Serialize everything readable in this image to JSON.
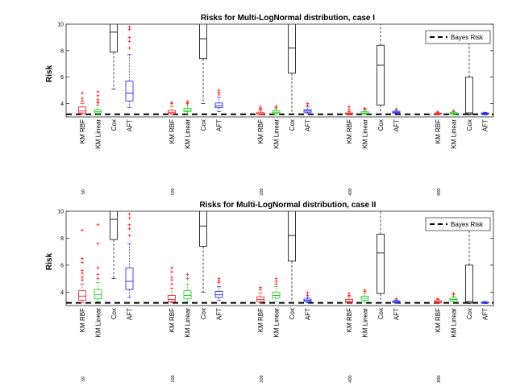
{
  "chart_data": [
    {
      "type": "box",
      "title": "Risks for Multi-LogNormal distribution, case I",
      "ylabel": "Risk",
      "ylim": [
        3,
        10
      ],
      "yticks": [
        4,
        6,
        8,
        10
      ],
      "legend": {
        "label": "Bayes Risk",
        "placement": "top-right"
      },
      "bayes_risk": 3.2,
      "methods": [
        "KM RBF",
        "KM Linear",
        "Cox",
        "AFT"
      ],
      "groups": [
        "50",
        "100",
        "200",
        "400",
        "800"
      ],
      "colors": {
        "KM RBF": "#ee3333",
        "KM Linear": "#33cc33",
        "Cox": "#222222",
        "AFT": "#3333ee",
        "outlier": "#ff2222",
        "bayes": "#000000"
      },
      "boxes": [
        [
          {
            "q1": 3.3,
            "med": 3.45,
            "q3": 3.75,
            "wlo": 3.2,
            "whi": 4.0,
            "outliers": [
              4.2,
              4.4,
              4.8
            ]
          },
          {
            "q1": 3.3,
            "med": 3.4,
            "q3": 3.55,
            "wlo": 3.2,
            "whi": 3.9,
            "outliers": [
              4.05,
              4.15,
              4.3,
              4.6,
              4.9
            ]
          },
          {
            "q1": 7.9,
            "med": 9.4,
            "q3": 10.3,
            "wlo": 5.1,
            "whi": 10.5,
            "outliers": []
          },
          {
            "q1": 4.2,
            "med": 4.8,
            "q3": 5.7,
            "wlo": 3.7,
            "whi": 7.7,
            "outliers": [
              8.2,
              8.7,
              9.0,
              9.6,
              9.8
            ]
          }
        ],
        [
          {
            "q1": 3.25,
            "med": 3.35,
            "q3": 3.5,
            "wlo": 3.2,
            "whi": 3.8,
            "outliers": [
              4.0,
              4.1
            ]
          },
          {
            "q1": 3.4,
            "med": 3.5,
            "q3": 3.65,
            "wlo": 3.25,
            "whi": 3.85,
            "outliers": [
              4.0,
              4.05,
              4.15
            ]
          },
          {
            "q1": 7.4,
            "med": 8.9,
            "q3": 10.3,
            "wlo": 4.0,
            "whi": 10.5,
            "outliers": []
          },
          {
            "q1": 3.7,
            "med": 3.85,
            "q3": 4.05,
            "wlo": 3.4,
            "whi": 4.5,
            "outliers": [
              4.7,
              4.85,
              5.0
            ]
          }
        ],
        [
          {
            "q1": 3.2,
            "med": 3.25,
            "q3": 3.35,
            "wlo": 3.15,
            "whi": 3.5,
            "outliers": [
              3.6,
              3.65,
              3.75
            ]
          },
          {
            "q1": 3.25,
            "med": 3.35,
            "q3": 3.45,
            "wlo": 3.2,
            "whi": 3.6,
            "outliers": [
              3.7,
              3.8
            ]
          },
          {
            "q1": 6.3,
            "med": 8.2,
            "q3": 10.2,
            "wlo": 3.2,
            "whi": 10.4,
            "outliers": []
          },
          {
            "q1": 3.35,
            "med": 3.45,
            "q3": 3.55,
            "wlo": 3.25,
            "whi": 3.75,
            "outliers": [
              3.9,
              4.0
            ]
          }
        ],
        [
          {
            "q1": 3.2,
            "med": 3.25,
            "q3": 3.3,
            "wlo": 3.15,
            "whi": 3.4,
            "outliers": [
              3.55,
              3.75
            ]
          },
          {
            "q1": 3.25,
            "med": 3.3,
            "q3": 3.4,
            "wlo": 3.2,
            "whi": 3.5,
            "outliers": [
              3.6,
              3.65
            ]
          },
          {
            "q1": 3.9,
            "med": 6.9,
            "q3": 8.4,
            "wlo": 3.2,
            "whi": 10.4,
            "outliers": []
          },
          {
            "q1": 3.3,
            "med": 3.35,
            "q3": 3.42,
            "wlo": 3.25,
            "whi": 3.5,
            "outliers": [
              3.6
            ]
          }
        ],
        [
          {
            "q1": 3.2,
            "med": 3.23,
            "q3": 3.28,
            "wlo": 3.15,
            "whi": 3.33,
            "outliers": [
              3.38
            ]
          },
          {
            "q1": 3.22,
            "med": 3.27,
            "q3": 3.32,
            "wlo": 3.18,
            "whi": 3.4,
            "outliers": [
              3.45
            ]
          },
          {
            "q1": 3.2,
            "med": 3.3,
            "q3": 6.0,
            "wlo": 3.15,
            "whi": 9.4,
            "outliers": []
          },
          {
            "q1": 3.2,
            "med": 3.25,
            "q3": 3.3,
            "wlo": 3.18,
            "whi": 3.35,
            "outliers": []
          }
        ]
      ]
    },
    {
      "type": "box",
      "title": "Risks for Multi-LogNormal distribution, case II",
      "ylabel": "Risk",
      "ylim": [
        3,
        10
      ],
      "yticks": [
        4,
        6,
        8,
        10
      ],
      "legend": {
        "label": "Bayes Risk",
        "placement": "top-right"
      },
      "bayes_risk": 3.2,
      "methods": [
        "KM RBF",
        "KM Linear",
        "Cox",
        "AFT"
      ],
      "groups": [
        "50",
        "100",
        "200",
        "400",
        "800"
      ],
      "colors": {
        "KM RBF": "#ee3333",
        "KM Linear": "#33cc33",
        "Cox": "#222222",
        "AFT": "#3333ee",
        "outlier": "#ff2222",
        "bayes": "#000000"
      },
      "boxes": [
        [
          {
            "q1": 3.4,
            "med": 3.7,
            "q3": 4.1,
            "wlo": 3.2,
            "whi": 4.6,
            "outliers": [
              4.9,
              5.1,
              5.4,
              5.6,
              6.2,
              6.5,
              8.6
            ]
          },
          {
            "q1": 3.5,
            "med": 3.8,
            "q3": 4.2,
            "wlo": 3.3,
            "whi": 4.7,
            "outliers": [
              5.0,
              5.3,
              5.8,
              7.6,
              9.0
            ]
          },
          {
            "q1": 7.9,
            "med": 9.4,
            "q3": 10.3,
            "wlo": 5.0,
            "whi": 10.5,
            "outliers": []
          },
          {
            "q1": 4.2,
            "med": 4.8,
            "q3": 5.8,
            "wlo": 3.6,
            "whi": 7.6,
            "outliers": [
              8.2,
              8.7,
              9.0,
              9.5,
              9.8
            ]
          }
        ],
        [
          {
            "q1": 3.3,
            "med": 3.45,
            "q3": 3.75,
            "wlo": 3.2,
            "whi": 4.3,
            "outliers": [
              4.6,
              4.9,
              5.1,
              5.5,
              5.8
            ]
          },
          {
            "q1": 3.5,
            "med": 3.75,
            "q3": 4.1,
            "wlo": 3.3,
            "whi": 4.6,
            "outliers": [
              5.0,
              5.3
            ]
          },
          {
            "q1": 7.4,
            "med": 8.9,
            "q3": 10.3,
            "wlo": 4.0,
            "whi": 10.5,
            "outliers": []
          },
          {
            "q1": 3.6,
            "med": 3.8,
            "q3": 4.05,
            "wlo": 3.4,
            "whi": 4.4,
            "outliers": [
              4.7,
              4.85,
              5.0
            ]
          }
        ],
        [
          {
            "q1": 3.3,
            "med": 3.45,
            "q3": 3.65,
            "wlo": 3.2,
            "whi": 3.95,
            "outliers": [
              4.2,
              4.35
            ]
          },
          {
            "q1": 3.55,
            "med": 3.75,
            "q3": 4.0,
            "wlo": 3.3,
            "whi": 4.4,
            "outliers": [
              4.6,
              4.8,
              5.0
            ]
          },
          {
            "q1": 6.3,
            "med": 8.2,
            "q3": 10.2,
            "wlo": 3.2,
            "whi": 10.4,
            "outliers": []
          },
          {
            "q1": 3.3,
            "med": 3.38,
            "q3": 3.48,
            "wlo": 3.2,
            "whi": 3.6,
            "outliers": [
              3.75,
              3.95
            ]
          }
        ],
        [
          {
            "q1": 3.22,
            "med": 3.3,
            "q3": 3.45,
            "wlo": 3.15,
            "whi": 3.65,
            "outliers": [
              3.75,
              3.9
            ]
          },
          {
            "q1": 3.4,
            "med": 3.55,
            "q3": 3.7,
            "wlo": 3.25,
            "whi": 3.9,
            "outliers": [
              4.05,
              4.15
            ]
          },
          {
            "q1": 3.9,
            "med": 6.9,
            "q3": 8.3,
            "wlo": 3.2,
            "whi": 10.4,
            "outliers": []
          },
          {
            "q1": 3.22,
            "med": 3.28,
            "q3": 3.35,
            "wlo": 3.18,
            "whi": 3.42,
            "outliers": [
              3.5
            ]
          }
        ],
        [
          {
            "q1": 3.2,
            "med": 3.28,
            "q3": 3.36,
            "wlo": 3.15,
            "whi": 3.45,
            "outliers": [
              3.5
            ]
          },
          {
            "q1": 3.35,
            "med": 3.45,
            "q3": 3.55,
            "wlo": 3.25,
            "whi": 3.7,
            "outliers": [
              3.8,
              3.9
            ]
          },
          {
            "q1": 3.2,
            "med": 3.3,
            "q3": 6.0,
            "wlo": 3.15,
            "whi": 9.4,
            "outliers": []
          },
          {
            "q1": 3.18,
            "med": 3.22,
            "q3": 3.26,
            "wlo": 3.15,
            "whi": 3.3,
            "outliers": []
          }
        ]
      ]
    }
  ]
}
